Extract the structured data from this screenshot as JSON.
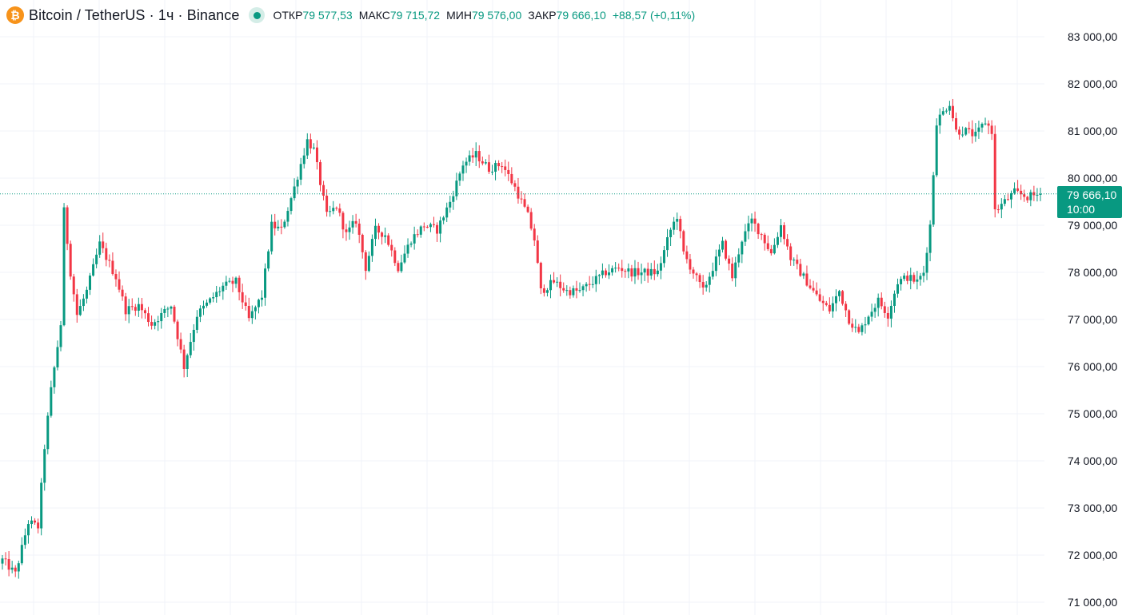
{
  "header": {
    "coin_icon": "bitcoin-icon",
    "coin_glyph": "₿",
    "title": "Bitcoin / TetherUS · 1ч · Binance",
    "status": "market-open-dot",
    "ohlc": {
      "open_label": "ОТКР",
      "open_value": "79 577,53",
      "high_label": "МАКС",
      "high_value": "79 715,72",
      "low_label": "МИН",
      "low_value": "79 576,00",
      "close_label": "ЗАКР",
      "close_value": "79 666,10",
      "change": "+88,57 (+0,11%)"
    }
  },
  "price_tag": {
    "price": "79 666,10",
    "countdown": "10:00"
  },
  "colors": {
    "up": "#089981",
    "down": "#f23645",
    "grid": "#f0f3fa",
    "axis_text": "#131722",
    "last_price_line": "#089981"
  },
  "chart_data": {
    "type": "candlestick",
    "interval": "1h",
    "symbol": "BTCUSDT",
    "ylim": [
      70800,
      83500
    ],
    "last_price": 79666.1,
    "y_ticks": [
      {
        "value": 83000,
        "label": "83 000,00"
      },
      {
        "value": 82000,
        "label": "82 000,00"
      },
      {
        "value": 81000,
        "label": "81 000,00"
      },
      {
        "value": 80000,
        "label": "80 000,00"
      },
      {
        "value": 79000,
        "label": "79 000,00"
      },
      {
        "value": 78000,
        "label": "78 000,00"
      },
      {
        "value": 77000,
        "label": "77 000,00"
      },
      {
        "value": 76000,
        "label": "76 000,00"
      },
      {
        "value": 75000,
        "label": "75 000,00"
      },
      {
        "value": 74000,
        "label": "74 000,00"
      },
      {
        "value": 73000,
        "label": "73 000,00"
      },
      {
        "value": 72000,
        "label": "72 000,00"
      },
      {
        "value": 71000,
        "label": "71 000,00"
      }
    ],
    "close_path": [
      [
        0,
        71900
      ],
      [
        4,
        71600
      ],
      [
        8,
        72700
      ],
      [
        11,
        72600
      ],
      [
        13,
        74300
      ],
      [
        15,
        75500
      ],
      [
        18,
        76900
      ],
      [
        19,
        79300
      ],
      [
        21,
        78000
      ],
      [
        23,
        77100
      ],
      [
        26,
        77600
      ],
      [
        30,
        78600
      ],
      [
        35,
        77900
      ],
      [
        38,
        77200
      ],
      [
        42,
        77300
      ],
      [
        46,
        76900
      ],
      [
        52,
        77300
      ],
      [
        56,
        76000
      ],
      [
        60,
        77100
      ],
      [
        64,
        77400
      ],
      [
        68,
        77700
      ],
      [
        72,
        77800
      ],
      [
        76,
        77000
      ],
      [
        80,
        77500
      ],
      [
        83,
        79000
      ],
      [
        86,
        78900
      ],
      [
        90,
        79800
      ],
      [
        94,
        80800
      ],
      [
        96,
        80600
      ],
      [
        98,
        79900
      ],
      [
        100,
        79200
      ],
      [
        103,
        79400
      ],
      [
        106,
        78800
      ],
      [
        109,
        79100
      ],
      [
        112,
        78100
      ],
      [
        115,
        78900
      ],
      [
        118,
        78800
      ],
      [
        122,
        78100
      ],
      [
        126,
        78700
      ],
      [
        130,
        79000
      ],
      [
        134,
        78900
      ],
      [
        138,
        79500
      ],
      [
        142,
        80300
      ],
      [
        146,
        80500
      ],
      [
        150,
        80200
      ],
      [
        154,
        80300
      ],
      [
        158,
        79800
      ],
      [
        162,
        79200
      ],
      [
        164,
        78700
      ],
      [
        166,
        77600
      ],
      [
        170,
        77800
      ],
      [
        174,
        77600
      ],
      [
        178,
        77600
      ],
      [
        182,
        77800
      ],
      [
        186,
        78000
      ],
      [
        190,
        78100
      ],
      [
        194,
        78000
      ],
      [
        198,
        78000
      ],
      [
        202,
        78000
      ],
      [
        206,
        78900
      ],
      [
        208,
        79200
      ],
      [
        210,
        78400
      ],
      [
        213,
        78000
      ],
      [
        216,
        77600
      ],
      [
        219,
        78100
      ],
      [
        222,
        78600
      ],
      [
        225,
        77900
      ],
      [
        228,
        78700
      ],
      [
        231,
        79100
      ],
      [
        234,
        78800
      ],
      [
        237,
        78400
      ],
      [
        240,
        79000
      ],
      [
        243,
        78300
      ],
      [
        246,
        78000
      ],
      [
        249,
        77700
      ],
      [
        252,
        77400
      ],
      [
        255,
        77200
      ],
      [
        258,
        77600
      ],
      [
        261,
        77000
      ],
      [
        264,
        76700
      ],
      [
        267,
        77100
      ],
      [
        270,
        77400
      ],
      [
        273,
        77100
      ],
      [
        276,
        77800
      ],
      [
        279,
        77900
      ],
      [
        282,
        77800
      ],
      [
        284,
        78000
      ],
      [
        286,
        79000
      ],
      [
        288,
        81200
      ],
      [
        290,
        81400
      ],
      [
        292,
        81600
      ],
      [
        294,
        81000
      ],
      [
        297,
        81000
      ],
      [
        300,
        80900
      ],
      [
        303,
        81200
      ],
      [
        305,
        81000
      ],
      [
        306,
        79300
      ],
      [
        309,
        79500
      ],
      [
        312,
        79700
      ],
      [
        316,
        79600
      ],
      [
        320,
        79666
      ]
    ]
  },
  "axis_labels": {
    "t83000": "83 000,00",
    "t82000": "82 000,00",
    "t81000": "81 000,00",
    "t80000": "80 000,00",
    "t79000": "79 000,00",
    "t78000": "78 000,00",
    "t77000": "77 000,00",
    "t76000": "76 000,00",
    "t75000": "75 000,00",
    "t74000": "74 000,00",
    "t73000": "73 000,00",
    "t72000": "72 000,00",
    "t71000": "71 000,00"
  }
}
